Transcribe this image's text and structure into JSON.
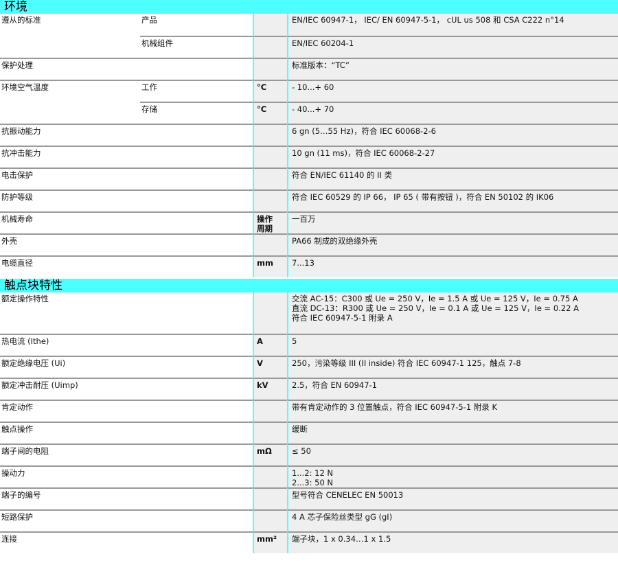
{
  "sections": [
    {
      "title": "环境",
      "rows": [
        {
          "label": "遵从的标准",
          "sub": "产品",
          "unit": "",
          "value": "EN/IEC 60947-1， IEC/ EN 60947-5-1， cUL us 508 和 CSA C222 n°14"
        },
        {
          "label": "",
          "sub": "机械组件",
          "unit": "",
          "value": "EN/IEC 60204-1",
          "cont": true
        },
        {
          "label": "保护处理",
          "sub": "",
          "unit": "",
          "value": "标准版本：“TC”"
        },
        {
          "label": "环境空气温度",
          "sub": "工作",
          "unit": "°C",
          "value": "- 10...+ 60"
        },
        {
          "label": "",
          "sub": "存储",
          "unit": "°C",
          "value": "- 40...+ 70",
          "cont": true
        },
        {
          "label": "抗振动能力",
          "sub": "",
          "unit": "",
          "value": "6 gn (5…55 Hz)，符合 IEC 60068-2-6"
        },
        {
          "label": "抗冲击能力",
          "sub": "",
          "unit": "",
          "value": "10 gn (11 ms)，符合 IEC 60068-2-27"
        },
        {
          "label": "电击保护",
          "sub": "",
          "unit": "",
          "value": "符合 EN/IEC 61140 的 II 类"
        },
        {
          "label": "防护等级",
          "sub": "",
          "unit": "",
          "value": "符合 IEC 60529 的 IP 66， IP 65 ( 带有按钮 )，符合 EN 50102 的 IK06"
        },
        {
          "label": "机械寿命",
          "sub": "",
          "unit": "操作\n周期",
          "value": "一百万"
        },
        {
          "label": "外壳",
          "sub": "",
          "unit": "",
          "value": "PA66 制成的双绝缘外壳"
        },
        {
          "label": "电缆直径",
          "sub": "",
          "unit": "mm",
          "value": "7...13"
        }
      ]
    },
    {
      "title": "触点块特性",
      "rows": [
        {
          "label": "额定操作特性",
          "sub": "",
          "unit": "",
          "value": "交流 AC-15：C300 或 Ue = 250 V，Ie = 1.5 A 或 Ue = 125 V，Ie = 0.75 A\n直流 DC-13：R300 或 Ue = 250 V，Ie = 0.1 A 或 Ue = 125 V，Ie = 0.22 A\n符合 IEC 60947-5-1 附录 A",
          "tall": true
        },
        {
          "label": "热电流 (Ithe)",
          "sub": "",
          "unit": "A",
          "value": "5"
        },
        {
          "label": "额定绝缘电压 (Ui)",
          "sub": "",
          "unit": "V",
          "value": "250，污染等级 III (II inside) 符合 IEC 60947-1 125，触点 7-8"
        },
        {
          "label": "额定冲击耐压 (Uimp)",
          "sub": "",
          "unit": "kV",
          "value": "2.5，符合 EN 60947-1"
        },
        {
          "label": "肯定动作",
          "sub": "",
          "unit": "",
          "value": "带有肯定动作的 3 位置触点，符合 IEC 60947-5-1 附录 K"
        },
        {
          "label": "触点操作",
          "sub": "",
          "unit": "",
          "value": "缓断"
        },
        {
          "label": "端子间的电阻",
          "sub": "",
          "unit": "mΩ",
          "value": "≤ 50"
        },
        {
          "label": "操动力",
          "sub": "",
          "unit": "",
          "value": "1...2: 12 N\n2...3: 50 N"
        },
        {
          "label": "端子的编号",
          "sub": "",
          "unit": "",
          "value": "型号符合 CENELEC EN 50013"
        },
        {
          "label": "短路保护",
          "sub": "",
          "unit": "",
          "value": "4 A 芯子保险丝类型 gG (gI)"
        },
        {
          "label": "连接",
          "sub": "",
          "unit": "mm²",
          "value": "端子块，1 x 0.34…1 x 1.5"
        }
      ]
    }
  ],
  "colors": {
    "section_header": "#4dffff",
    "value_bg": "#efefef",
    "row_divider": "#999999"
  }
}
